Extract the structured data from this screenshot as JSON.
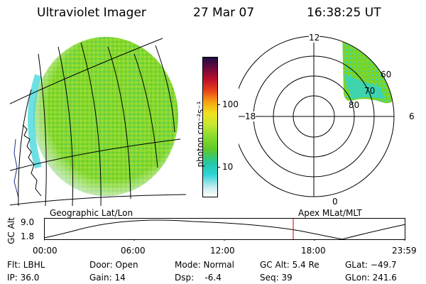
{
  "header": {
    "title": "Ultraviolet Imager",
    "date": "27 Mar 07",
    "time": "16:38:25 UT"
  },
  "colorbar": {
    "unit_label": "photon cm⁻²s⁻¹",
    "ticks": [
      "100",
      "10"
    ]
  },
  "polar": {
    "mlt_labels": {
      "top": "12",
      "left": "18",
      "right": "6",
      "bottom": "0"
    },
    "lat_labels": [
      "60",
      "70",
      "80"
    ]
  },
  "altitude_plot": {
    "ylabel": "GC Alt",
    "yticks": [
      "9.0",
      "1.8"
    ],
    "left_caption": "Geographic Lat/Lon",
    "right_caption": "Apex MLat/MLT",
    "xticks": [
      "00:00",
      "06:00",
      "12:00",
      "18:00",
      "23:59"
    ],
    "marker_color": "#cc0000"
  },
  "info": {
    "flt": "Flt: LBHL",
    "ip": "IP: 36.0",
    "door": "Door: Open",
    "gain": "Gain: 14",
    "mode": "Mode: Normal",
    "dsp": "Dsp:    -6.4",
    "gcalt": "GC Alt: 5.4 Re",
    "seq": "Seq: 39",
    "glat": "GLat: −49.7",
    "glon": "GLon: 241.6"
  },
  "colors": {
    "aurora_green": "#7ad62a",
    "aurora_cyan": "#2ed3d6",
    "background": "#ffffff"
  }
}
